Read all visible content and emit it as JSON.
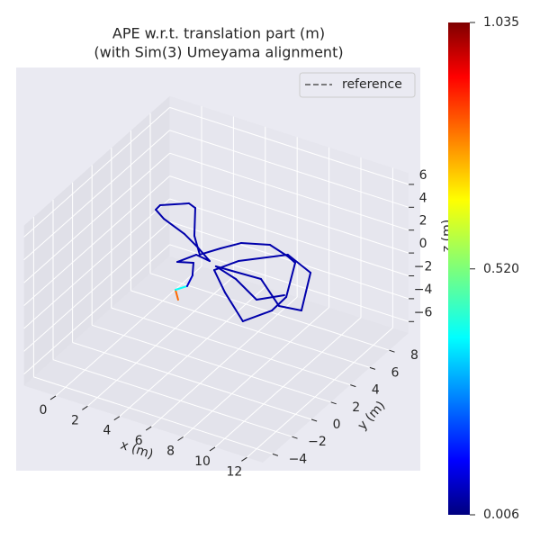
{
  "chart_data": {
    "type": "line3d",
    "title": "APE w.r.t. translation part (m)",
    "subtitle": "(with Sim(3) Umeyama alignment)",
    "xlabel": "x (m)",
    "ylabel": "y (m)",
    "zlabel": "z (m)",
    "xlim": [
      -2,
      13
    ],
    "ylim": [
      -5,
      10
    ],
    "zlim": [
      -7,
      7
    ],
    "xticks": [
      0,
      2,
      4,
      6,
      8,
      10,
      12
    ],
    "yticks": [
      {
        "value": -4,
        "label": "−4"
      },
      {
        "value": -2,
        "label": "−2"
      },
      0,
      2,
      4,
      6,
      8
    ],
    "zticks": [
      {
        "value": -6,
        "label": "−6"
      },
      {
        "value": -4,
        "label": "−4"
      },
      {
        "value": -2,
        "label": "−2"
      },
      0,
      2,
      4,
      6
    ],
    "grid": true,
    "legend": {
      "position": "upper right",
      "entries": [
        "reference"
      ],
      "style": "dashed",
      "color": "#555555"
    },
    "colormap": "jet",
    "clim": [
      0.006,
      1.035
    ],
    "colorbar_ticks": [
      0.006,
      {
        "value": 0.52,
        "label": "0.520"
      },
      1.035
    ],
    "series": [
      {
        "x": [
          4.8,
          4.16,
          4.51,
          4.2,
          3.59,
          2.8,
          3.3,
          4.25,
          3.0,
          1.68,
          -0.06,
          -0.9,
          -0.93,
          0.3,
          0.83,
          2.23,
          3.46,
          4.09,
          4.76,
          6.18,
          7.62,
          8.28,
          9.64,
          9.68,
          8.9,
          6.58,
          4.92,
          5.57,
          7.52,
          9.5,
          11.04,
          9.77,
          7.54,
          4.81,
          6.38,
          8.41,
          9.46
        ],
        "y": [
          -0.28,
          0.49,
          1.12,
          2.18,
          3.28,
          2.91,
          4.04,
          3.87,
          4.7,
          5.48,
          6.21,
          6.76,
          7.26,
          8.2,
          7.99,
          5.6,
          4.14,
          5.24,
          6.26,
          6.9,
          6.4,
          6.06,
          2.91,
          1.37,
          -0.34,
          1.62,
          3.23,
          4.66,
          6.55,
          5.64,
          2.18,
          1.95,
          3.75,
          3.59,
          3.06,
          1.87,
          3.01
        ],
        "z": [
          0,
          0,
          0,
          0,
          0,
          0,
          0,
          0,
          0,
          0,
          0,
          0,
          0,
          0,
          0,
          0,
          0,
          0,
          0,
          0,
          0,
          0,
          0,
          0,
          0,
          0,
          0,
          0,
          0,
          0,
          0,
          0,
          0,
          0,
          0,
          0,
          0
        ],
        "error": [
          0.8,
          0.4,
          0.08,
          0.05,
          0.05,
          0.05,
          0.05,
          0.05,
          0.05,
          0.05,
          0.05,
          0.05,
          0.05,
          0.05,
          0.05,
          0.05,
          0.05,
          0.05,
          0.05,
          0.05,
          0.05,
          0.05,
          0.05,
          0.05,
          0.05,
          0.05,
          0.05,
          0.05,
          0.05,
          0.05,
          0.05,
          0.05,
          0.05,
          0.05,
          0.05,
          0.05,
          0.05
        ]
      }
    ]
  }
}
